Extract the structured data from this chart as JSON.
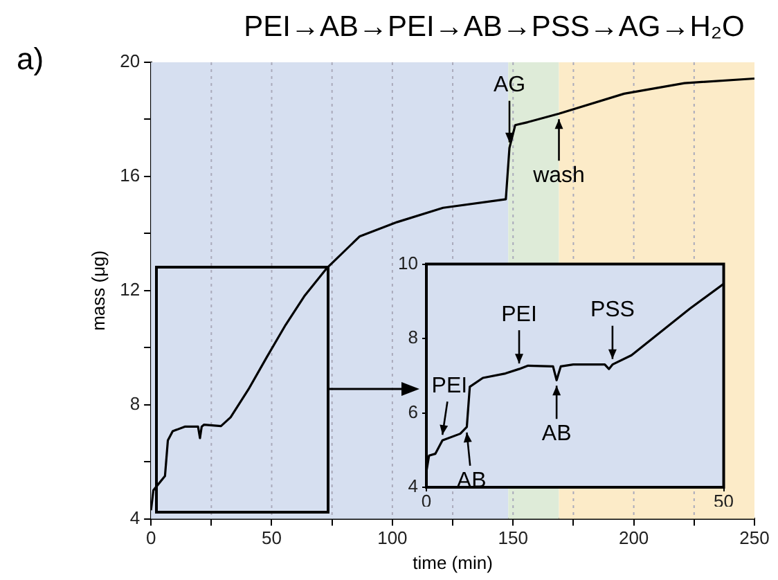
{
  "chart_data": [
    {
      "type": "line",
      "title": "PEI→AB→PEI→AB→PSS→AG→H₂O",
      "xlabel": "time (min)",
      "ylabel": "mass (μg)",
      "x": [
        0,
        1,
        5.8,
        7,
        9,
        14,
        19.5,
        20.3,
        21,
        22,
        29,
        33,
        40.4,
        48,
        55.8,
        63.5,
        73,
        86.5,
        102,
        121,
        147,
        148.5,
        150.9,
        156,
        169,
        196,
        221,
        250
      ],
      "series": [
        {
          "color": "#000000",
          "values": [
            4.3,
            5.0,
            5.5,
            6.75,
            7.07,
            7.23,
            7.23,
            6.83,
            7.23,
            7.3,
            7.25,
            7.56,
            8.54,
            9.67,
            10.8,
            11.8,
            12.8,
            13.9,
            14.4,
            14.9,
            15.2,
            17.0,
            17.8,
            17.9,
            18.2,
            18.9,
            19.27,
            19.43
          ]
        }
      ],
      "xlim": [
        0,
        250
      ],
      "xticks": [
        0,
        {
          "value": 25,
          "label": null
        },
        50,
        {
          "value": 75,
          "label": null
        },
        100,
        {
          "value": 125,
          "label": null
        },
        150,
        {
          "value": 175,
          "label": null
        },
        200,
        {
          "value": 225,
          "label": null
        },
        250
      ],
      "ylim": [
        4,
        20
      ],
      "yticks": [
        4,
        {
          "value": 6,
          "label": null
        },
        8,
        {
          "value": 10,
          "label": null
        },
        12,
        {
          "value": 14,
          "label": null
        },
        16,
        {
          "value": 18,
          "label": null
        },
        20
      ],
      "grid": "x",
      "legend": false,
      "marker": "none",
      "line_style": "solid",
      "bands": [
        {
          "axis": "x",
          "from": 0,
          "to": 148,
          "color": "#d6dff0"
        },
        {
          "axis": "x",
          "from": 148,
          "to": 169,
          "color": "#deebd8"
        },
        {
          "axis": "x",
          "from": 169,
          "to": 250,
          "color": "#fcebc8"
        }
      ],
      "annotations": [
        "a)",
        {
          "text": "AG",
          "x": 148.5,
          "y": 17.0
        },
        {
          "text": "wash",
          "x": 169,
          "y": 18.2
        }
      ]
    },
    {
      "type": "line",
      "x": [
        0,
        0.45,
        1.5,
        2.7,
        5.7,
        6.8,
        7.3,
        9.5,
        13.3,
        15.6,
        17.1,
        21.3,
        21.9,
        22.6,
        24.7,
        30,
        30.7,
        31.3,
        34.5,
        44.3,
        50
      ],
      "series": [
        {
          "color": "#000000",
          "values": [
            4.42,
            4.85,
            4.9,
            5.26,
            5.44,
            5.62,
            6.7,
            6.94,
            7.06,
            7.18,
            7.27,
            7.25,
            6.88,
            7.25,
            7.3,
            7.3,
            7.18,
            7.3,
            7.55,
            8.8,
            9.47
          ]
        }
      ],
      "xlim": [
        0,
        50
      ],
      "xticks": [
        0,
        50
      ],
      "ylim": [
        4,
        10
      ],
      "yticks": [
        4,
        6,
        8,
        10
      ],
      "legend": false,
      "marker": "none",
      "line_style": "solid",
      "annotations": [
        {
          "text": "PEI",
          "x": 2.7,
          "y": 5.26
        },
        {
          "text": "AB",
          "x": 6.8,
          "y": 5.62
        },
        {
          "text": "PEI",
          "x": 15.6,
          "y": 7.18
        },
        {
          "text": "AB",
          "x": 21.9,
          "y": 6.88
        },
        {
          "text": "PSS",
          "x": 31.3,
          "y": 7.3
        }
      ]
    }
  ]
}
